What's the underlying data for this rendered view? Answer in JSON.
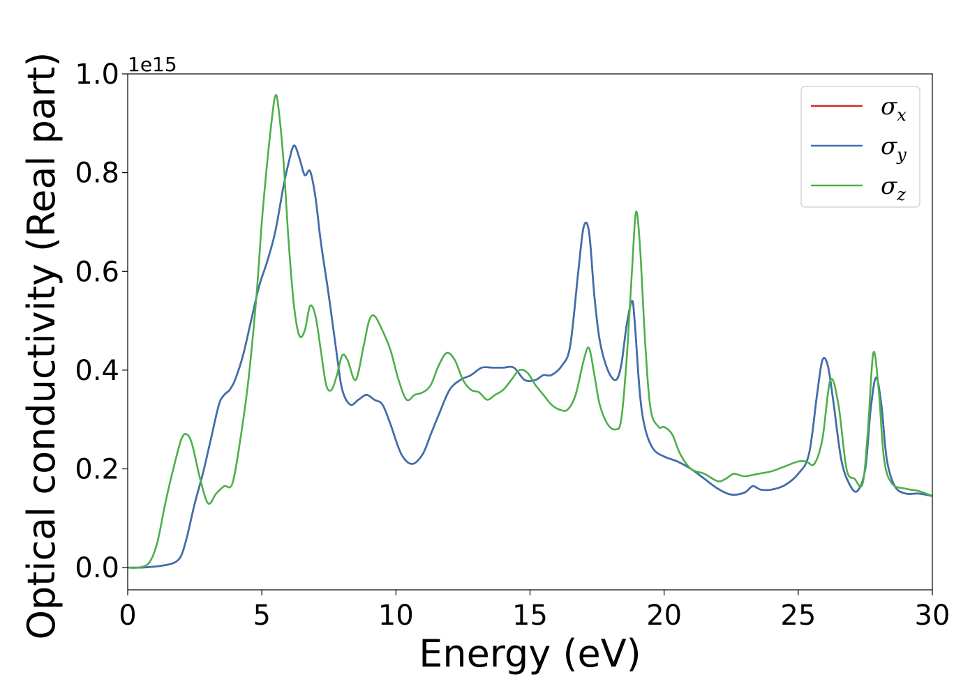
{
  "chart_data": {
    "type": "line",
    "title": "",
    "xlabel": "Energy (eV)",
    "ylabel": "Optical conductivity (Real part)",
    "y_offset_text": "1e15",
    "xlim": [
      0,
      30
    ],
    "ylim": [
      -0.045,
      1.0
    ],
    "x_ticks": [
      "0",
      "5",
      "10",
      "15",
      "20",
      "25",
      "30"
    ],
    "y_ticks": [
      "0.0",
      "0.2",
      "0.4",
      "0.6",
      "0.8",
      "1.0"
    ],
    "x_tick_values": [
      0,
      5,
      10,
      15,
      20,
      25,
      30
    ],
    "y_tick_values": [
      0.0,
      0.2,
      0.4,
      0.6,
      0.8,
      1.0
    ],
    "grid": false,
    "legend_position": "top-right",
    "series": [
      {
        "name": "σx",
        "legend_base": "σ",
        "legend_sub": "x",
        "color": "#d62728",
        "x": [
          0,
          0.5,
          1.0,
          1.5,
          1.8,
          2.0,
          2.2,
          2.5,
          2.8,
          3.1,
          3.4,
          3.6,
          3.8,
          4.0,
          4.3,
          4.6,
          4.9,
          5.2,
          5.5,
          5.8,
          6.0,
          6.2,
          6.4,
          6.6,
          6.8,
          7.0,
          7.2,
          7.5,
          7.8,
          8.0,
          8.3,
          8.6,
          8.9,
          9.2,
          9.5,
          9.8,
          10.2,
          10.6,
          11.0,
          11.3,
          11.6,
          12.0,
          12.4,
          12.8,
          13.2,
          13.6,
          14.0,
          14.4,
          14.8,
          15.2,
          15.5,
          15.8,
          16.2,
          16.5,
          16.8,
          17.0,
          17.2,
          17.4,
          17.6,
          17.9,
          18.2,
          18.4,
          18.6,
          18.8,
          18.9,
          19.1,
          19.3,
          19.6,
          20.0,
          20.5,
          21.0,
          21.5,
          22.0,
          22.5,
          23.0,
          23.3,
          23.6,
          24.0,
          24.5,
          25.0,
          25.4,
          25.7,
          25.9,
          26.1,
          26.3,
          26.6,
          26.9,
          27.2,
          27.5,
          27.7,
          27.9,
          28.1,
          28.3,
          28.6,
          29.0,
          29.5,
          30.0
        ],
        "y": [
          0.0,
          0.0,
          0.002,
          0.006,
          0.012,
          0.025,
          0.06,
          0.13,
          0.19,
          0.26,
          0.33,
          0.35,
          0.36,
          0.38,
          0.43,
          0.5,
          0.57,
          0.62,
          0.68,
          0.77,
          0.82,
          0.855,
          0.83,
          0.795,
          0.803,
          0.75,
          0.66,
          0.55,
          0.43,
          0.36,
          0.33,
          0.34,
          0.35,
          0.34,
          0.33,
          0.29,
          0.23,
          0.21,
          0.23,
          0.27,
          0.31,
          0.36,
          0.38,
          0.39,
          0.405,
          0.405,
          0.405,
          0.405,
          0.38,
          0.38,
          0.39,
          0.39,
          0.41,
          0.45,
          0.6,
          0.69,
          0.68,
          0.55,
          0.46,
          0.4,
          0.38,
          0.41,
          0.49,
          0.54,
          0.5,
          0.35,
          0.28,
          0.24,
          0.225,
          0.215,
          0.2,
          0.18,
          0.16,
          0.148,
          0.152,
          0.165,
          0.158,
          0.158,
          0.167,
          0.19,
          0.23,
          0.35,
          0.42,
          0.41,
          0.34,
          0.22,
          0.17,
          0.155,
          0.2,
          0.32,
          0.385,
          0.33,
          0.22,
          0.165,
          0.15,
          0.15,
          0.145
        ]
      },
      {
        "name": "σy",
        "legend_base": "σ",
        "legend_sub": "y",
        "color": "#3a70b0",
        "x": [
          0,
          0.5,
          1.0,
          1.5,
          1.8,
          2.0,
          2.2,
          2.5,
          2.8,
          3.1,
          3.4,
          3.6,
          3.8,
          4.0,
          4.3,
          4.6,
          4.9,
          5.2,
          5.5,
          5.8,
          6.0,
          6.2,
          6.4,
          6.6,
          6.8,
          7.0,
          7.2,
          7.5,
          7.8,
          8.0,
          8.3,
          8.6,
          8.9,
          9.2,
          9.5,
          9.8,
          10.2,
          10.6,
          11.0,
          11.3,
          11.6,
          12.0,
          12.4,
          12.8,
          13.2,
          13.6,
          14.0,
          14.4,
          14.8,
          15.2,
          15.5,
          15.8,
          16.2,
          16.5,
          16.8,
          17.0,
          17.2,
          17.4,
          17.6,
          17.9,
          18.2,
          18.4,
          18.6,
          18.8,
          18.9,
          19.1,
          19.3,
          19.6,
          20.0,
          20.5,
          21.0,
          21.5,
          22.0,
          22.5,
          23.0,
          23.3,
          23.6,
          24.0,
          24.5,
          25.0,
          25.4,
          25.7,
          25.9,
          26.1,
          26.3,
          26.6,
          26.9,
          27.2,
          27.5,
          27.7,
          27.9,
          28.1,
          28.3,
          28.6,
          29.0,
          29.5,
          30.0
        ],
        "y": [
          0.0,
          0.0,
          0.002,
          0.006,
          0.012,
          0.025,
          0.06,
          0.13,
          0.19,
          0.26,
          0.33,
          0.35,
          0.36,
          0.38,
          0.43,
          0.5,
          0.57,
          0.62,
          0.68,
          0.77,
          0.82,
          0.855,
          0.83,
          0.795,
          0.803,
          0.75,
          0.66,
          0.55,
          0.43,
          0.36,
          0.33,
          0.34,
          0.35,
          0.34,
          0.33,
          0.29,
          0.23,
          0.21,
          0.23,
          0.27,
          0.31,
          0.36,
          0.38,
          0.39,
          0.405,
          0.405,
          0.405,
          0.405,
          0.38,
          0.38,
          0.39,
          0.39,
          0.41,
          0.45,
          0.6,
          0.69,
          0.68,
          0.55,
          0.46,
          0.4,
          0.38,
          0.41,
          0.49,
          0.54,
          0.5,
          0.35,
          0.28,
          0.24,
          0.225,
          0.215,
          0.2,
          0.18,
          0.16,
          0.148,
          0.152,
          0.165,
          0.158,
          0.158,
          0.167,
          0.19,
          0.23,
          0.35,
          0.42,
          0.41,
          0.34,
          0.22,
          0.17,
          0.155,
          0.2,
          0.32,
          0.385,
          0.33,
          0.22,
          0.165,
          0.15,
          0.15,
          0.145
        ]
      },
      {
        "name": "σz",
        "legend_base": "σ",
        "legend_sub": "z",
        "color": "#4daf4a",
        "x": [
          0,
          0.4,
          0.8,
          1.1,
          1.4,
          1.7,
          2.0,
          2.2,
          2.4,
          2.7,
          3.0,
          3.3,
          3.6,
          3.9,
          4.2,
          4.5,
          4.8,
          5.0,
          5.2,
          5.4,
          5.5,
          5.6,
          5.8,
          6.0,
          6.2,
          6.4,
          6.6,
          6.8,
          7.0,
          7.2,
          7.4,
          7.6,
          7.8,
          8.0,
          8.2,
          8.5,
          8.8,
          9.0,
          9.2,
          9.5,
          9.8,
          10.1,
          10.4,
          10.7,
          11.0,
          11.3,
          11.6,
          11.9,
          12.2,
          12.5,
          12.8,
          13.1,
          13.4,
          13.7,
          14.0,
          14.3,
          14.6,
          14.9,
          15.2,
          15.5,
          15.8,
          16.1,
          16.4,
          16.7,
          17.0,
          17.2,
          17.4,
          17.6,
          17.9,
          18.2,
          18.4,
          18.6,
          18.8,
          18.95,
          19.1,
          19.3,
          19.5,
          19.8,
          20.0,
          20.3,
          20.6,
          21.0,
          21.5,
          22.0,
          22.3,
          22.6,
          23.0,
          23.5,
          24.0,
          24.5,
          25.0,
          25.3,
          25.6,
          25.9,
          26.2,
          26.5,
          26.8,
          27.1,
          27.4,
          27.6,
          27.8,
          28.0,
          28.2,
          28.5,
          29.0,
          29.5,
          30.0
        ],
        "y": [
          0.0,
          0.0,
          0.01,
          0.05,
          0.13,
          0.2,
          0.26,
          0.27,
          0.25,
          0.18,
          0.13,
          0.15,
          0.165,
          0.17,
          0.26,
          0.38,
          0.55,
          0.7,
          0.82,
          0.92,
          0.955,
          0.94,
          0.83,
          0.66,
          0.53,
          0.47,
          0.48,
          0.53,
          0.51,
          0.44,
          0.37,
          0.36,
          0.39,
          0.43,
          0.42,
          0.38,
          0.45,
          0.5,
          0.51,
          0.48,
          0.44,
          0.38,
          0.34,
          0.35,
          0.355,
          0.37,
          0.41,
          0.435,
          0.42,
          0.38,
          0.36,
          0.355,
          0.34,
          0.35,
          0.36,
          0.38,
          0.4,
          0.395,
          0.37,
          0.35,
          0.33,
          0.32,
          0.32,
          0.35,
          0.42,
          0.445,
          0.39,
          0.33,
          0.29,
          0.28,
          0.3,
          0.42,
          0.6,
          0.72,
          0.65,
          0.45,
          0.32,
          0.285,
          0.285,
          0.27,
          0.23,
          0.2,
          0.19,
          0.175,
          0.18,
          0.19,
          0.185,
          0.19,
          0.195,
          0.205,
          0.215,
          0.215,
          0.21,
          0.26,
          0.38,
          0.33,
          0.2,
          0.18,
          0.17,
          0.28,
          0.435,
          0.36,
          0.22,
          0.17,
          0.16,
          0.155,
          0.145
        ]
      }
    ]
  }
}
